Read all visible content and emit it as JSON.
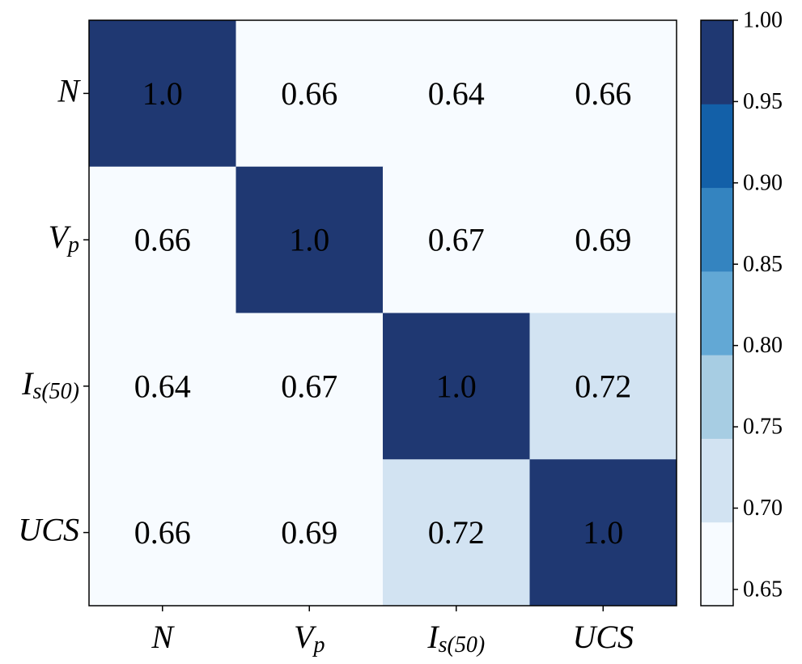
{
  "chart_data": {
    "type": "heatmap",
    "title": "",
    "xlabel": "",
    "ylabel": "",
    "x_labels": [
      {
        "main": "N",
        "sub": ""
      },
      {
        "main": "V",
        "sub": "p"
      },
      {
        "main": "I",
        "sub": "s(50)"
      },
      {
        "main": "UCS",
        "sub": ""
      }
    ],
    "y_labels": [
      {
        "main": "N",
        "sub": ""
      },
      {
        "main": "V",
        "sub": "p"
      },
      {
        "main": "I",
        "sub": "s(50)"
      },
      {
        "main": "UCS",
        "sub": ""
      }
    ],
    "values": [
      [
        1.0,
        0.66,
        0.64,
        0.66
      ],
      [
        0.66,
        1.0,
        0.67,
        0.69
      ],
      [
        0.64,
        0.67,
        1.0,
        0.72
      ],
      [
        0.66,
        0.69,
        0.72,
        1.0
      ]
    ],
    "value_labels": [
      [
        "1.0",
        "0.66",
        "0.64",
        "0.66"
      ],
      [
        "0.66",
        "1.0",
        "0.67",
        "0.69"
      ],
      [
        "0.64",
        "0.67",
        "1.0",
        "0.72"
      ],
      [
        "0.66",
        "0.69",
        "0.72",
        "1.0"
      ]
    ],
    "colorbar": {
      "range": [
        0.64,
        1.0
      ],
      "ticks": [
        "1.00",
        "0.95",
        "0.90",
        "0.85",
        "0.80",
        "0.75",
        "0.70",
        "0.65"
      ],
      "levels": 7,
      "colors": [
        "#f7fbff",
        "#d2e3f2",
        "#a7cde3",
        "#62a8d5",
        "#3484c0",
        "#1360a8",
        "#1f3872"
      ]
    }
  }
}
